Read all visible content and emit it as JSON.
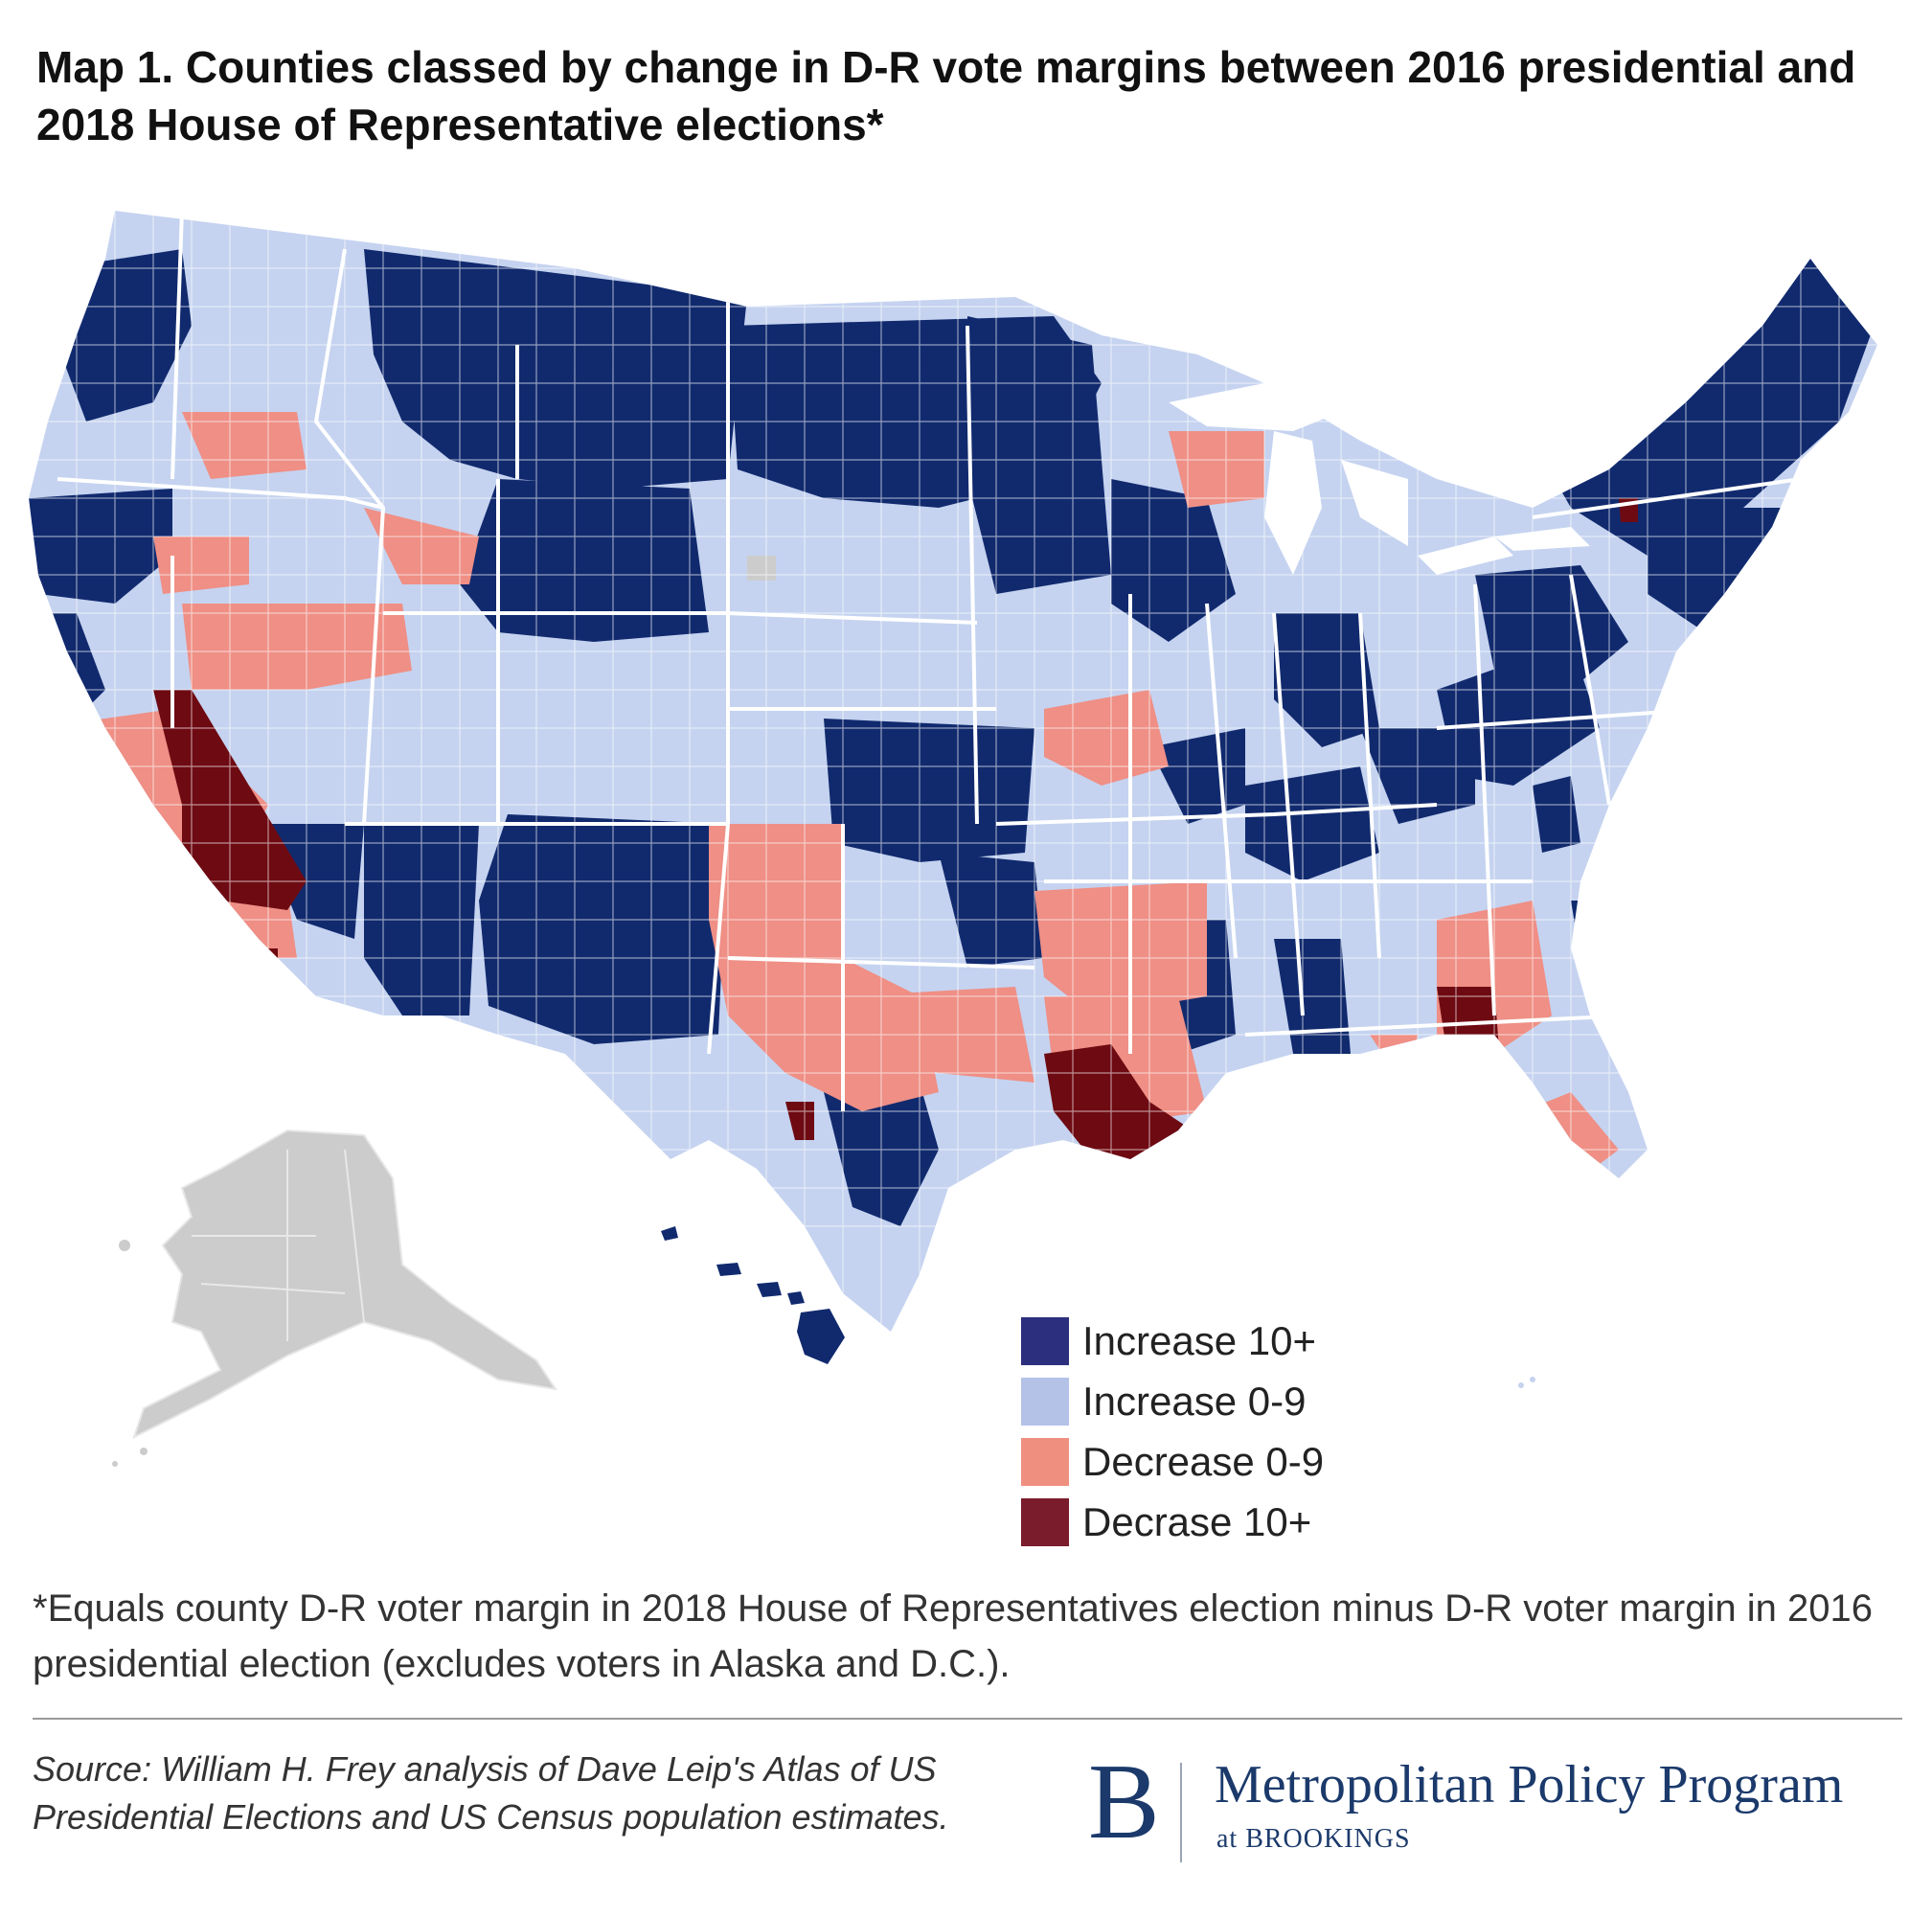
{
  "title": "Map 1. Counties classed by change in D-R vote margins between 2016 presidential and 2018 House of Representative elections*",
  "legend": {
    "items": [
      {
        "label": "Increase 10+",
        "color": "#2c2f7e"
      },
      {
        "label": "Increase 0-9",
        "color": "#b4c2e8"
      },
      {
        "label": "Decrease 0-9",
        "color": "#ef8f80"
      },
      {
        "label": "Decrase 10+",
        "color": "#7a1c2c"
      }
    ]
  },
  "map_colors": {
    "increase_10_plus": "#112a6e",
    "increase_0_9": "#c5d3f0",
    "decrease_0_9": "#ef8f85",
    "decrease_10_plus": "#6e0a12",
    "excluded": "#cccccc",
    "border": "#ffffff"
  },
  "footnote": "*Equals county D-R voter margin in 2018 House of Representatives election minus D-R voter margin in 2016 presidential election (excludes voters in Alaska and D.C.).",
  "source": "Source: William H. Frey analysis of Dave Leip's Atlas of  US Presidential Elections and US Census population estimates.",
  "logo": {
    "mark": "B",
    "program": "Metropolitan Policy Program",
    "sub": "at BROOKINGS"
  }
}
